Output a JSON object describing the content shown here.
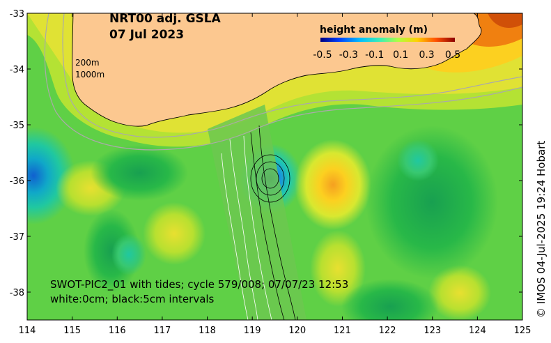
{
  "title": {
    "line1": "NRT00 adj. GSLA",
    "line2": "07 Jul 2023"
  },
  "isobaths": {
    "shallow": "200m",
    "deep": "1000m"
  },
  "legend": {
    "title": "height anomaly (m)",
    "ticks": [
      "-0.5",
      "-0.3",
      "-0.1",
      "0.1",
      "0.3",
      "0.5"
    ],
    "colors": [
      "#00007f",
      "#0050ff",
      "#00d0ff",
      "#40f0a0",
      "#c0ff40",
      "#ffd000",
      "#ff6000",
      "#a00000"
    ]
  },
  "axes": {
    "x_ticks": [
      "114",
      "115",
      "116",
      "117",
      "118",
      "119",
      "120",
      "121",
      "122",
      "123",
      "124",
      "125"
    ],
    "y_ticks": [
      "-33",
      "-34",
      "-35",
      "-36",
      "-37",
      "-38"
    ],
    "xlim": [
      114,
      125
    ],
    "ylim": [
      -38.5,
      -33
    ]
  },
  "swot_note": {
    "line1": "SWOT-PIC2_01 with tides; cycle 579/008; 07/07/23 12:53",
    "line2": "white:0cm; black:5cm intervals"
  },
  "credit": "© IMOS 04-Jul-2025 19:24 Hobart",
  "colors": {
    "land": "#fcc890",
    "field_mid": "#5fd046",
    "field_green": "#2fb846",
    "field_yellow": "#b4e234",
    "field_cyan": "#2ecc8a"
  }
}
